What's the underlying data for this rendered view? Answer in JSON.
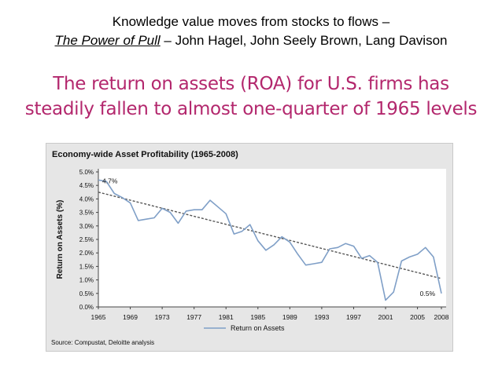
{
  "slide": {
    "title_line1": "Knowledge value moves from stocks to flows –",
    "title_book": "The Power of Pull",
    "title_authors": " – John Hagel, John Seely Brown, Lang Davison",
    "headline_line1": "The return on assets (ROA) for U.S. firms has",
    "headline_line2": "steadily fallen to almost one-quarter of 1965 levels"
  },
  "colors": {
    "headline": "#b3276d",
    "series_line": "#7f9fc7",
    "trend_line": "#555555",
    "figure_bg": "#e6e6e6",
    "plot_bg": "#ffffff"
  },
  "chart_data": {
    "type": "line",
    "title": "Economy-wide Asset Profitability (1965-2008)",
    "xlabel": "",
    "ylabel": "Return on Assets (%)",
    "x_ticks": [
      "1965",
      "1969",
      "1973",
      "1977",
      "1981",
      "1985",
      "1989",
      "1993",
      "1997",
      "2001",
      "2005",
      "2008"
    ],
    "y_ticks": [
      "5.0%",
      "4.5%",
      "4.0%",
      "3.5%",
      "3.0%",
      "2.5%",
      "2.0%",
      "1.5%",
      "1.0%",
      "0.5%",
      "0.0%"
    ],
    "xlim": [
      1965,
      2008
    ],
    "ylim": [
      0,
      5
    ],
    "series": [
      {
        "name": "Return on Assets",
        "x": [
          1965,
          1966,
          1967,
          1968,
          1969,
          1970,
          1971,
          1972,
          1973,
          1974,
          1975,
          1976,
          1977,
          1978,
          1979,
          1980,
          1981,
          1982,
          1983,
          1984,
          1985,
          1986,
          1987,
          1988,
          1989,
          1990,
          1991,
          1992,
          1993,
          1994,
          1995,
          1996,
          1997,
          1998,
          1999,
          2000,
          2001,
          2002,
          2003,
          2004,
          2005,
          2006,
          2007,
          2008
        ],
        "values": [
          4.7,
          4.65,
          4.2,
          4.05,
          3.85,
          3.2,
          3.25,
          3.3,
          3.65,
          3.5,
          3.1,
          3.55,
          3.6,
          3.6,
          3.95,
          3.7,
          3.45,
          2.7,
          2.8,
          3.05,
          2.45,
          2.1,
          2.3,
          2.6,
          2.4,
          1.95,
          1.55,
          1.6,
          1.65,
          2.15,
          2.2,
          2.35,
          2.25,
          1.8,
          1.9,
          1.65,
          0.25,
          0.55,
          1.7,
          1.85,
          1.95,
          2.2,
          1.85,
          0.5
        ]
      }
    ],
    "trend": {
      "name": "Trend",
      "x": [
        1965,
        2008
      ],
      "values": [
        4.25,
        1.05
      ]
    },
    "annotations": [
      {
        "text": "4.7%",
        "x": 1965,
        "y": 4.7
      },
      {
        "text": "0.5%",
        "x": 2008,
        "y": 0.5
      }
    ],
    "legend": "bottom-center",
    "source": "Source: Compustat, Deloitte analysis",
    "grid": false
  }
}
